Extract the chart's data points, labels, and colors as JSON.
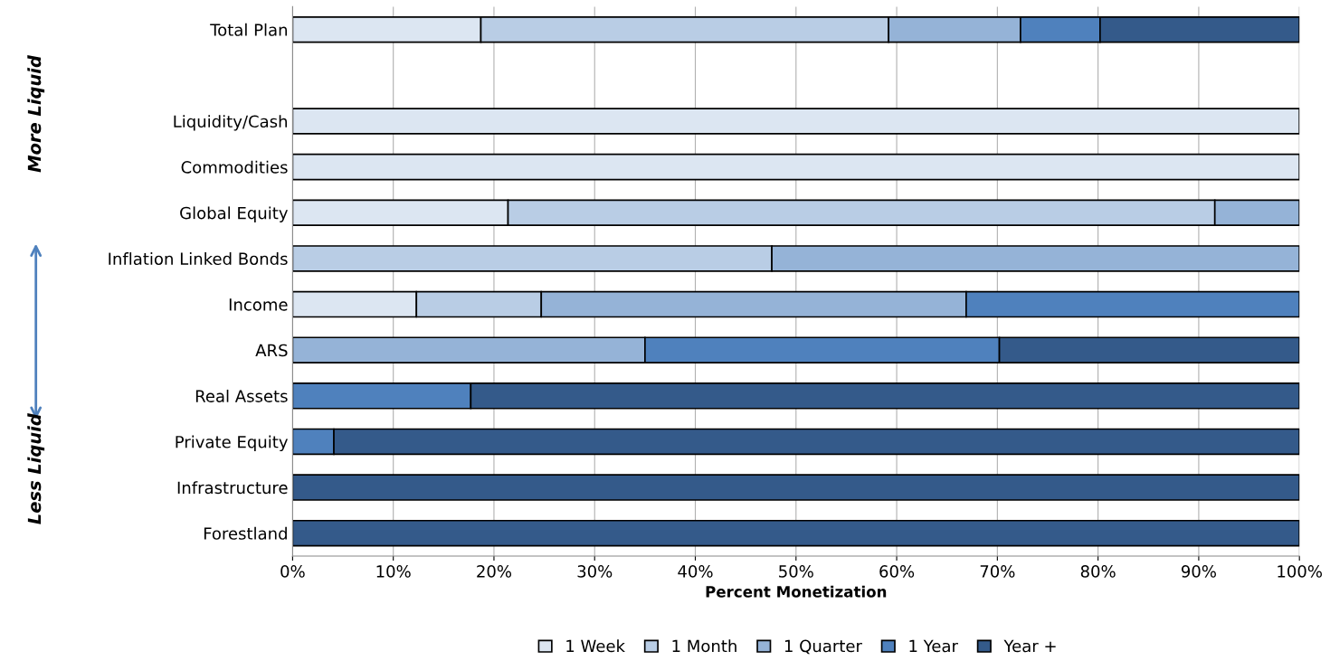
{
  "chart_data": {
    "type": "bar",
    "orientation": "horizontal",
    "stacked": true,
    "xlabel": "Percent Monetization",
    "categories": [
      "Total Plan",
      null,
      "Liquidity/Cash",
      "Commodities",
      "Global Equity",
      "Inflation Linked Bonds",
      "Income",
      "ARS",
      "Real Assets",
      "Private Equity",
      "Infrastructure",
      "Forestland"
    ],
    "series": [
      {
        "name": "1 Week",
        "color": "#dce6f2",
        "values": [
          18.7,
          null,
          100,
          100,
          21.4,
          0,
          12.3,
          0,
          0,
          0,
          0,
          0
        ]
      },
      {
        "name": "1 Month",
        "color": "#b9cde5",
        "values": [
          40.5,
          null,
          0,
          0,
          70.2,
          47.6,
          12.4,
          0,
          0,
          0,
          0,
          0
        ]
      },
      {
        "name": "1 Quarter",
        "color": "#95b3d7",
        "values": [
          13.1,
          null,
          0,
          0,
          8.4,
          52.4,
          42.2,
          35.0,
          0,
          0,
          0,
          0
        ]
      },
      {
        "name": "1 Year",
        "color": "#4f81bd",
        "values": [
          7.9,
          null,
          0,
          0,
          0,
          0,
          33.1,
          35.2,
          17.7,
          4.1,
          0,
          0
        ]
      },
      {
        "name": "Year +",
        "color": "#345a8a",
        "values": [
          19.8,
          null,
          0,
          0,
          0,
          0,
          0,
          29.8,
          82.3,
          95.9,
          100,
          100
        ]
      }
    ],
    "xlim": [
      0,
      100
    ],
    "xticks": [
      {
        "value": 0,
        "label": "0%"
      },
      {
        "value": 10,
        "label": "10%"
      },
      {
        "value": 20,
        "label": "20%"
      },
      {
        "value": 30,
        "label": "30%"
      },
      {
        "value": 40,
        "label": "40%"
      },
      {
        "value": 50,
        "label": "50%"
      },
      {
        "value": 60,
        "label": "60%"
      },
      {
        "value": 70,
        "label": "70%"
      },
      {
        "value": 80,
        "label": "80%"
      },
      {
        "value": 90,
        "label": "90%"
      },
      {
        "value": 100,
        "label": "100%"
      }
    ],
    "grid": "x",
    "legend": "bottom",
    "annotations": [
      "More Liquid",
      "Less Liquid"
    ]
  }
}
